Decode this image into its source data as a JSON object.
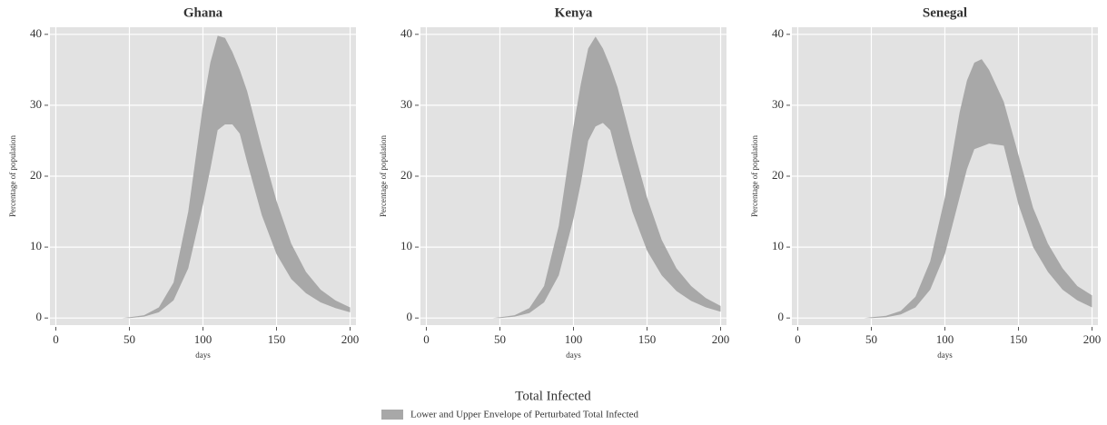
{
  "chart_data": [
    {
      "type": "band",
      "title": "Ghana",
      "xlabel": "days",
      "ylabel": "Percentage of population",
      "x": [
        45,
        50,
        60,
        70,
        80,
        90,
        100,
        105,
        110,
        115,
        120,
        125,
        130,
        140,
        150,
        160,
        170,
        180,
        190,
        200
      ],
      "upper": [
        0,
        0.1,
        0.4,
        1.5,
        5,
        15,
        30,
        36,
        39.8,
        39.5,
        37.5,
        35,
        32,
        24,
        16.5,
        10.5,
        6.5,
        4,
        2.5,
        1.5
      ],
      "lower": [
        0,
        0,
        0.2,
        0.8,
        2.5,
        7,
        16,
        21,
        26.5,
        27.3,
        27.3,
        26,
        22,
        14.5,
        9,
        5.5,
        3.5,
        2.2,
        1.4,
        0.8
      ],
      "color": "#a8a8a8",
      "xlim": [
        -4,
        204
      ],
      "ylim": [
        -1,
        41
      ],
      "xticks": [
        0,
        50,
        100,
        150,
        200
      ],
      "yticks": [
        0,
        10,
        20,
        30,
        40
      ],
      "grid": true
    },
    {
      "type": "band",
      "title": "Kenya",
      "xlabel": "days",
      "ylabel": "Percentage of population",
      "x": [
        45,
        50,
        60,
        70,
        80,
        90,
        100,
        105,
        110,
        115,
        120,
        125,
        130,
        140,
        150,
        160,
        170,
        180,
        190,
        200
      ],
      "upper": [
        0,
        0.1,
        0.4,
        1.4,
        4.5,
        13,
        27,
        33,
        38,
        39.7,
        38,
        35.5,
        32.5,
        24.5,
        17,
        11,
        7,
        4.5,
        2.8,
        1.7
      ],
      "lower": [
        0,
        0,
        0.2,
        0.7,
        2.2,
        6,
        14,
        19,
        25,
        27,
        27.5,
        26.5,
        22.5,
        15,
        9.5,
        6,
        3.8,
        2.4,
        1.5,
        0.9
      ],
      "color": "#a8a8a8",
      "xlim": [
        -4,
        204
      ],
      "ylim": [
        -1,
        41
      ],
      "xticks": [
        0,
        50,
        100,
        150,
        200
      ],
      "yticks": [
        0,
        10,
        20,
        30,
        40
      ],
      "grid": true
    },
    {
      "type": "band",
      "title": "Senegal",
      "xlabel": "days",
      "ylabel": "Percentage of population",
      "x": [
        45,
        50,
        60,
        70,
        80,
        90,
        100,
        105,
        110,
        115,
        120,
        125,
        130,
        140,
        150,
        160,
        170,
        180,
        190,
        200
      ],
      "upper": [
        0,
        0.1,
        0.3,
        1,
        3,
        8,
        17,
        23,
        29,
        33.5,
        36,
        36.5,
        35,
        30.5,
        23,
        15.5,
        10.5,
        7,
        4.5,
        3.2
      ],
      "lower": [
        0,
        0,
        0.1,
        0.5,
        1.5,
        4,
        9,
        13,
        17,
        21,
        23.8,
        24.2,
        24.6,
        24.3,
        16,
        10,
        6.5,
        4,
        2.5,
        1.5
      ],
      "color": "#a8a8a8",
      "xlim": [
        -4,
        204
      ],
      "ylim": [
        -1,
        41
      ],
      "xticks": [
        0,
        50,
        100,
        150,
        200
      ],
      "yticks": [
        0,
        10,
        20,
        30,
        40
      ],
      "grid": true
    }
  ],
  "legend": {
    "title": "Total Infected",
    "label": "Lower and Upper Envelope of Perturbated Total Infected"
  }
}
